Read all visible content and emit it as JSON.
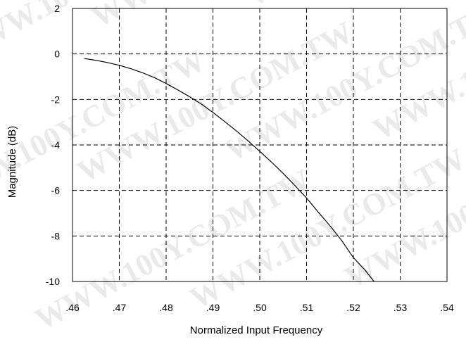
{
  "watermark": "WWW.100Y.COM.TW",
  "chart_data": {
    "type": "line",
    "title": "",
    "xlabel": "Normalized Input Frequency",
    "ylabel": "Magnitude (dB)",
    "xlim": [
      0.46,
      0.54
    ],
    "ylim": [
      -10,
      2
    ],
    "x_ticks": [
      ".46",
      ".47",
      ".48",
      ".49",
      ".50",
      ".51",
      ".52",
      ".53",
      ".54"
    ],
    "y_ticks": [
      "2",
      "0",
      "-2",
      "-4",
      "-6",
      "-8",
      "-10"
    ],
    "grid": true,
    "grid_style": "dashed",
    "line_color": "#000000",
    "series": [
      {
        "x": [
          0.4625,
          0.465,
          0.4675,
          0.47,
          0.4725,
          0.475,
          0.4775,
          0.48,
          0.4825,
          0.485,
          0.4875,
          0.49,
          0.4925,
          0.495,
          0.4975,
          0.5,
          0.5025,
          0.505,
          0.5075,
          0.51,
          0.5125,
          0.515,
          0.5175,
          0.52,
          0.5225,
          0.525,
          0.526
        ],
        "y": [
          -0.2,
          -0.28,
          -0.38,
          -0.5,
          -0.65,
          -0.83,
          -1.04,
          -1.3,
          -1.58,
          -1.88,
          -2.2,
          -2.57,
          -2.97,
          -3.38,
          -3.82,
          -4.28,
          -4.75,
          -5.25,
          -5.78,
          -6.33,
          -6.95,
          -7.55,
          -8.2,
          -8.95,
          -9.5,
          -10.15,
          -10.3
        ]
      }
    ]
  }
}
